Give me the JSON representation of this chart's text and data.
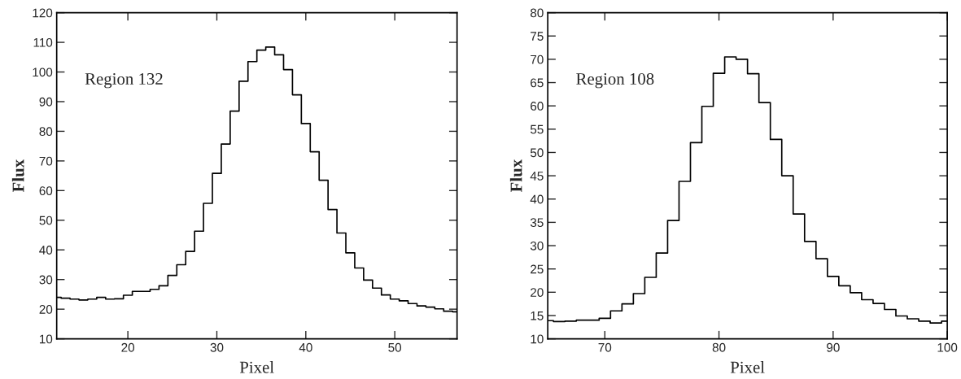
{
  "chart_data": [
    {
      "type": "step",
      "xlabel": "Pixel",
      "ylabel": "Flux",
      "annotations": [
        "Region 132"
      ],
      "x": [
        12,
        13,
        14,
        15,
        16,
        17,
        18,
        19,
        20,
        21,
        22,
        23,
        24,
        25,
        26,
        27,
        28,
        29,
        30,
        31,
        32,
        33,
        34,
        35,
        36,
        37,
        38,
        39,
        40,
        41,
        42,
        43,
        44,
        45,
        46,
        47,
        48,
        49,
        50,
        51,
        52,
        53,
        54,
        55,
        56,
        57
      ],
      "series": [
        {
          "color": "#000000",
          "values": [
            24.0,
            23.7,
            23.4,
            23.1,
            23.4,
            24.0,
            23.4,
            23.5,
            24.7,
            26.0,
            26.0,
            26.7,
            27.9,
            31.4,
            35.0,
            39.5,
            46.3,
            55.7,
            65.8,
            75.7,
            86.8,
            96.9,
            103.5,
            107.4,
            108.4,
            105.8,
            100.8,
            92.3,
            82.6,
            73.1,
            63.5,
            53.6,
            45.7,
            39.0,
            33.9,
            29.8,
            27.1,
            24.8,
            23.4,
            22.8,
            21.9,
            21.1,
            20.7,
            20.1,
            19.3,
            19.1
          ]
        }
      ],
      "xlim": [
        12,
        57
      ],
      "ylim": [
        10,
        120
      ],
      "xticks": [
        20,
        30,
        40,
        50
      ],
      "yticks": [
        10,
        20,
        30,
        40,
        50,
        60,
        70,
        80,
        90,
        100,
        110,
        120
      ],
      "grid": false,
      "legend": false
    },
    {
      "type": "step",
      "xlabel": "Pixel",
      "ylabel": "Flux",
      "annotations": [
        "Region 108"
      ],
      "x": [
        65,
        66,
        67,
        68,
        69,
        70,
        71,
        72,
        73,
        74,
        75,
        76,
        77,
        78,
        79,
        80,
        81,
        82,
        83,
        84,
        85,
        86,
        87,
        88,
        89,
        90,
        91,
        92,
        93,
        94,
        95,
        96,
        97,
        98,
        99,
        100
      ],
      "series": [
        {
          "color": "#000000",
          "values": [
            13.9,
            13.7,
            13.8,
            14.0,
            14.0,
            14.4,
            16.0,
            17.5,
            19.7,
            23.2,
            28.4,
            35.4,
            43.8,
            52.1,
            59.9,
            67.0,
            70.5,
            70.0,
            66.9,
            60.7,
            52.8,
            45.0,
            36.8,
            30.9,
            27.2,
            23.4,
            21.4,
            19.9,
            18.4,
            17.6,
            16.3,
            14.9,
            14.3,
            13.8,
            13.4,
            13.8
          ]
        }
      ],
      "xlim": [
        65,
        100
      ],
      "ylim": [
        10,
        80
      ],
      "xticks": [
        70,
        80,
        90,
        100
      ],
      "yticks": [
        10,
        15,
        20,
        25,
        30,
        35,
        40,
        45,
        50,
        55,
        60,
        65,
        70,
        75,
        80
      ],
      "grid": false,
      "legend": false
    }
  ]
}
